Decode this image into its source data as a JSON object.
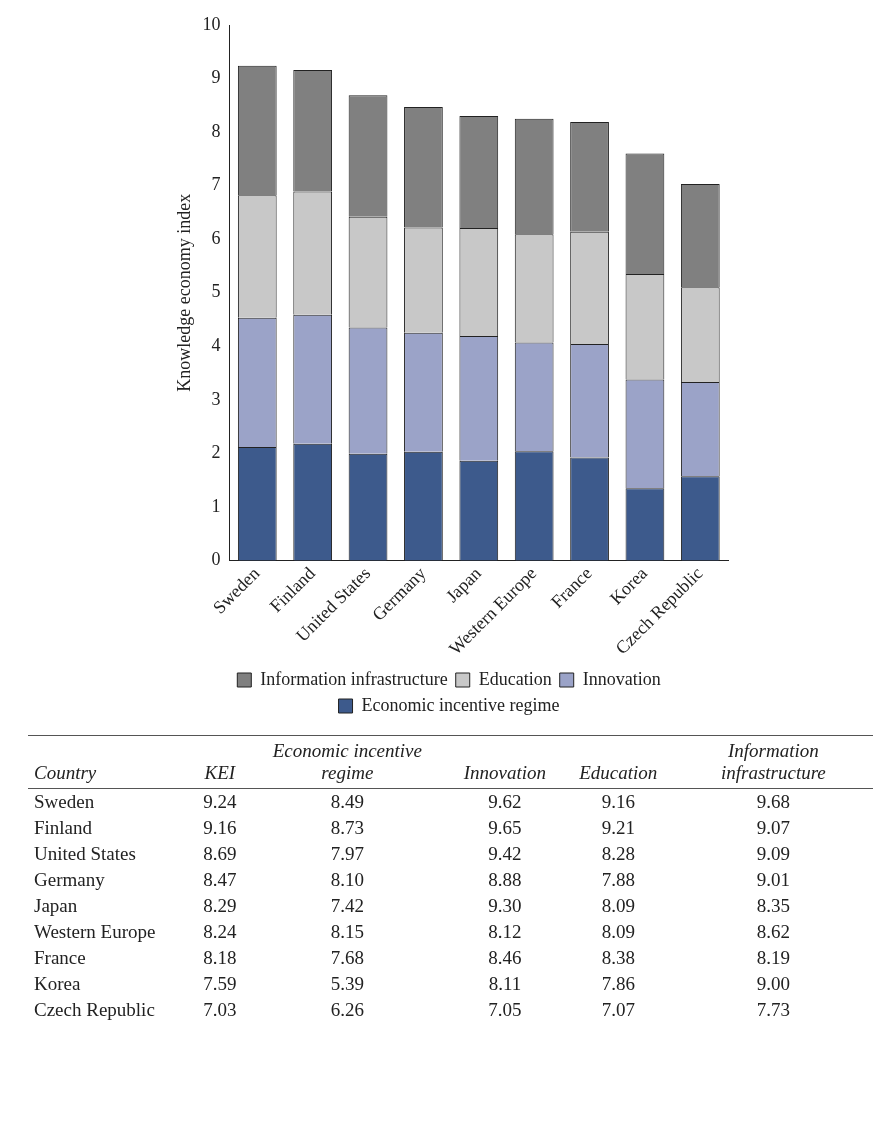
{
  "chart_data": [
    {
      "type": "bar",
      "stacked": true,
      "ylabel": "Knowledge economy index",
      "categories": [
        "Sweden",
        "Finland",
        "United States",
        "Germany",
        "Japan",
        "Western Europe",
        "France",
        "Korea",
        "Czech Republic"
      ],
      "ylim": [
        0,
        10
      ],
      "yticks": [
        0,
        1,
        2,
        3,
        4,
        5,
        6,
        7,
        8,
        9,
        10
      ],
      "legend": "bottom",
      "series": [
        {
          "name": "Economic incentive regime",
          "color": "#3d5a8c",
          "values": [
            2.12,
            2.18,
            1.99,
            2.03,
            1.86,
            2.04,
            1.92,
            1.35,
            1.57
          ]
        },
        {
          "name": "Innovation",
          "color": "#9ba3c8",
          "values": [
            2.41,
            2.41,
            2.36,
            2.22,
            2.33,
            2.03,
            2.12,
            2.03,
            1.76
          ]
        },
        {
          "name": "Education",
          "color": "#c8c8c8",
          "values": [
            2.29,
            2.3,
            2.07,
            1.97,
            2.02,
            2.02,
            2.1,
            1.97,
            1.77
          ]
        },
        {
          "name": "Information infrastructure",
          "color": "#808080",
          "values": [
            2.42,
            2.27,
            2.27,
            2.25,
            2.09,
            2.16,
            2.05,
            2.25,
            1.93
          ]
        }
      ]
    },
    {
      "type": "other",
      "xlabel": "Country",
      "data_labels": true,
      "categories": [
        "Sweden",
        "Finland",
        "United States",
        "Germany",
        "Japan",
        "Western Europe",
        "France",
        "Korea",
        "Czech Republic"
      ],
      "series": [
        {
          "name": "KEI",
          "values": [
            9.24,
            9.16,
            8.69,
            8.47,
            8.29,
            8.24,
            8.18,
            7.59,
            7.03
          ],
          "value_labels": [
            "9.24",
            "9.16",
            "8.69",
            "8.47",
            "8.29",
            "8.24",
            "8.18",
            "7.59",
            "7.03"
          ]
        },
        {
          "name": "Economic incentive regime",
          "values": [
            8.49,
            8.73,
            7.97,
            8.1,
            7.42,
            8.15,
            7.68,
            5.39,
            6.26
          ],
          "value_labels": [
            "8.49",
            "8.73",
            "7.97",
            "8.10",
            "7.42",
            "8.15",
            "7.68",
            "5.39",
            "6.26"
          ]
        },
        {
          "name": "Innovation",
          "values": [
            9.62,
            9.65,
            9.42,
            8.88,
            9.3,
            8.12,
            8.46,
            8.11,
            7.05
          ],
          "value_labels": [
            "9.62",
            "9.65",
            "9.42",
            "8.88",
            "9.30",
            "8.12",
            "8.46",
            "8.11",
            "7.05"
          ]
        },
        {
          "name": "Education",
          "values": [
            9.16,
            9.21,
            8.28,
            7.88,
            8.09,
            8.09,
            8.38,
            7.86,
            7.07
          ],
          "value_labels": [
            "9.16",
            "9.21",
            "8.28",
            "7.88",
            "8.09",
            "8.09",
            "8.38",
            "7.86",
            "7.07"
          ]
        },
        {
          "name": "Information infrastructure",
          "values": [
            9.68,
            9.07,
            9.09,
            9.01,
            8.35,
            8.62,
            8.19,
            9.0,
            7.73
          ],
          "value_labels": [
            "9.68",
            "9.07",
            "9.09",
            "9.01",
            "8.35",
            "8.62",
            "8.19",
            "9.00",
            "7.73"
          ]
        }
      ]
    }
  ]
}
